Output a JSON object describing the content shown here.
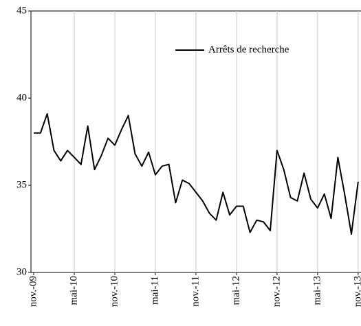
{
  "chart_data": {
    "type": "line",
    "categories": [
      "nov.-09",
      null,
      null,
      null,
      null,
      null,
      "mai-10",
      null,
      null,
      null,
      null,
      null,
      "nov.-10",
      null,
      null,
      null,
      null,
      null,
      "mai-11",
      null,
      null,
      null,
      null,
      null,
      "nov.-11",
      null,
      null,
      null,
      null,
      null,
      "mai-12",
      null,
      null,
      null,
      null,
      null,
      "nov.-12",
      null,
      null,
      null,
      null,
      null,
      "mai-13",
      null,
      null,
      null,
      null,
      null,
      "nov.-13"
    ],
    "series": [
      {
        "name": "Arrêts de recherche",
        "color": "#000000",
        "values": [
          38.0,
          38.0,
          39.1,
          37.0,
          36.4,
          37.0,
          36.6,
          36.2,
          38.4,
          35.9,
          36.7,
          37.7,
          37.3,
          38.2,
          39.0,
          36.8,
          36.1,
          36.9,
          35.6,
          36.1,
          36.2,
          34.0,
          35.3,
          35.1,
          34.6,
          34.1,
          33.4,
          33.0,
          34.6,
          33.3,
          33.8,
          33.8,
          32.3,
          33.0,
          32.9,
          32.4,
          37.0,
          35.9,
          34.3,
          34.1,
          35.7,
          34.2,
          33.7,
          34.5,
          33.1,
          36.6,
          34.5,
          32.2,
          35.2
        ]
      }
    ],
    "ylim": [
      30,
      45
    ],
    "yticks": [
      30,
      35,
      40,
      45
    ],
    "grid": true,
    "legend": "top-right"
  }
}
